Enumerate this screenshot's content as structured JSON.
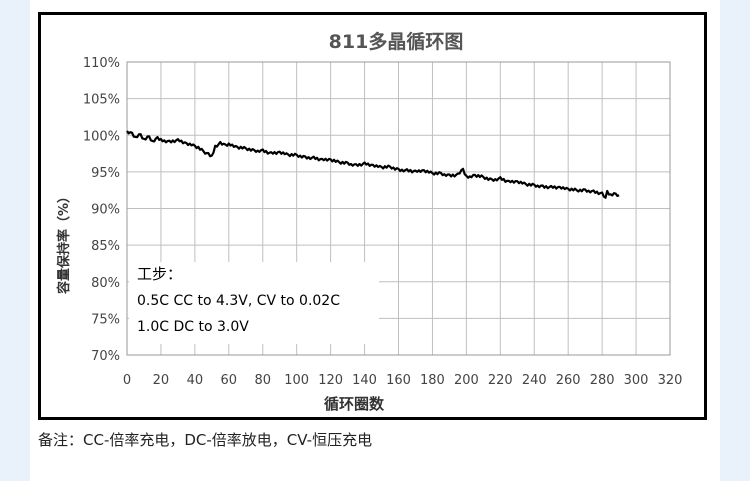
{
  "footnote": "备注：CC-倍率充电，DC-倍率放电，CV-恒压充电",
  "chart_data": {
    "type": "line",
    "title": "811多晶循环图",
    "xlabel": "循环圈数",
    "ylabel": "容量保持率（%）",
    "xlim": [
      0,
      320
    ],
    "ylim": [
      70,
      110
    ],
    "x_ticks": [
      "0",
      "20",
      "40",
      "60",
      "80",
      "100",
      "120",
      "140",
      "160",
      "180",
      "200",
      "220",
      "240",
      "260",
      "280",
      "300",
      "320"
    ],
    "y_ticks": [
      "70%",
      "75%",
      "80%",
      "85%",
      "90%",
      "95%",
      "100%",
      "105%",
      "110%"
    ],
    "grid": true,
    "colors": {
      "line": "#000000",
      "grid": "#bfbfbf"
    },
    "annotation": [
      "工步：",
      "0.5C CC to 4.3V, CV to 0.02C",
      "1.0C DC to 3.0V"
    ],
    "series": [
      {
        "x": [
          0,
          3,
          5,
          8,
          10,
          13,
          15,
          18,
          20,
          25,
          30,
          35,
          40,
          42,
          45,
          48,
          50,
          52,
          55,
          58,
          60,
          65,
          70,
          75,
          80,
          85,
          90,
          95,
          100,
          105,
          110,
          115,
          120,
          125,
          130,
          135,
          140,
          145,
          150,
          155,
          160,
          165,
          170,
          175,
          180,
          185,
          190,
          195,
          198,
          200,
          202,
          205,
          210,
          215,
          220,
          225,
          230,
          235,
          240,
          245,
          250,
          255,
          260,
          265,
          270,
          275,
          280,
          282,
          283,
          285,
          288,
          290
        ],
        "y": [
          100.4,
          100.2,
          99.6,
          100.1,
          99.4,
          99.8,
          99.2,
          99.6,
          99.4,
          99.1,
          99.3,
          98.8,
          98.5,
          98.3,
          97.8,
          97.4,
          97.1,
          98.5,
          98.9,
          98.6,
          98.7,
          98.3,
          98.2,
          97.9,
          97.9,
          97.5,
          97.6,
          97.3,
          97.3,
          97.0,
          96.9,
          96.6,
          96.6,
          96.3,
          96.2,
          95.9,
          96.1,
          95.8,
          95.6,
          95.7,
          95.3,
          95.2,
          95.0,
          95.1,
          94.8,
          94.8,
          94.5,
          94.6,
          95.3,
          94.3,
          94.2,
          94.5,
          94.3,
          93.9,
          94.1,
          93.6,
          93.6,
          93.3,
          93.2,
          93.0,
          92.9,
          92.8,
          92.6,
          92.5,
          92.5,
          92.3,
          92.0,
          91.3,
          92.3,
          91.8,
          92.0,
          91.8
        ]
      }
    ]
  }
}
